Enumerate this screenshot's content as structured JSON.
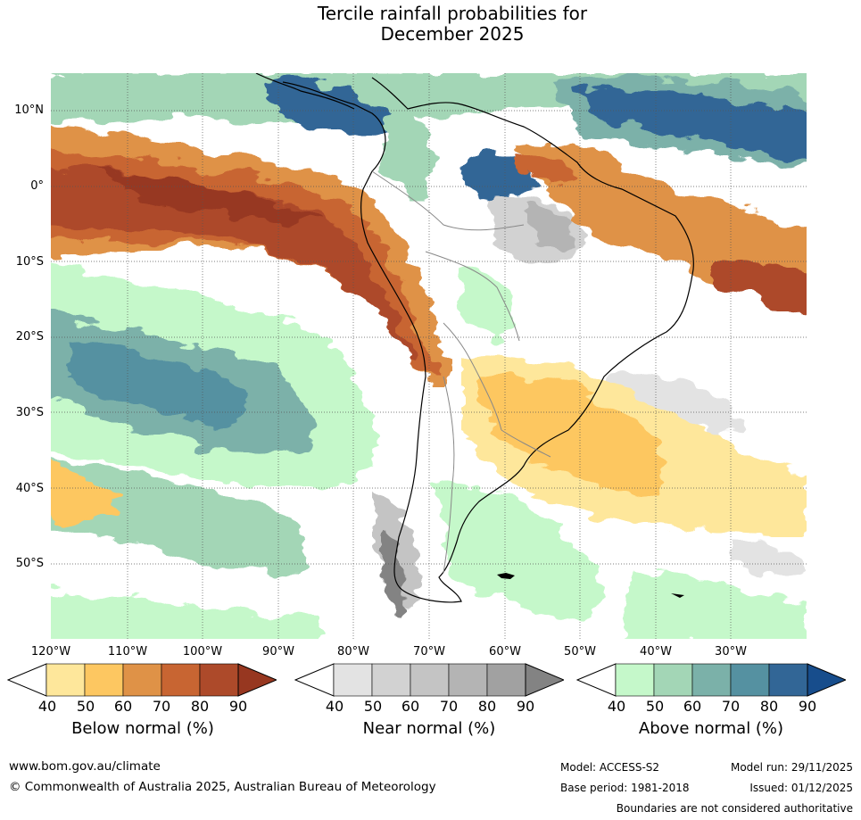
{
  "title": {
    "line1": "Tercile rainfall probabilities for",
    "line2": "December 2025"
  },
  "map": {
    "region": "South America",
    "lat_labels": [
      "10°N",
      "0°",
      "10°S",
      "20°S",
      "30°S",
      "40°S",
      "50°S"
    ],
    "lon_labels": [
      "120°W",
      "110°W",
      "100°W",
      "90°W",
      "80°W",
      "70°W",
      "60°W",
      "50°W",
      "40°W",
      "30°W"
    ],
    "colors": {
      "ocean_bg": "#ffffff",
      "land_border": "#000000",
      "country_border": "#888888",
      "grid": "#555555"
    }
  },
  "legend": {
    "below": {
      "title": "Below normal (%)",
      "ticks": [
        "40",
        "50",
        "60",
        "70",
        "80",
        "90"
      ],
      "colors": [
        "#ffffff",
        "#fee79b",
        "#fdc761",
        "#df9247",
        "#c86532",
        "#ad4a2a",
        "#973720"
      ]
    },
    "near": {
      "title": "Near normal (%)",
      "ticks": [
        "40",
        "50",
        "60",
        "70",
        "80",
        "90"
      ],
      "colors": [
        "#ffffff",
        "#e3e3e3",
        "#d2d2d2",
        "#c4c4c4",
        "#b4b4b4",
        "#a1a1a1",
        "#838383"
      ]
    },
    "above": {
      "title": "Above normal (%)",
      "ticks": [
        "40",
        "50",
        "60",
        "70",
        "80",
        "90"
      ],
      "colors": [
        "#ffffff",
        "#c5f8ca",
        "#a3d6b6",
        "#7bb1a9",
        "#5591a1",
        "#326696",
        "#174d8c"
      ]
    }
  },
  "footer": {
    "website": "www.bom.gov.au/climate",
    "copyright": "© Commonwealth of Australia 2025, Australian Bureau of Meteorology",
    "model": "Model: ACCESS-S2",
    "base_period": "Base period: 1981-2018",
    "model_run": "Model run: 29/11/2025",
    "issued": "Issued: 01/12/2025",
    "disclaimer": "Boundaries are not considered authoritative"
  }
}
